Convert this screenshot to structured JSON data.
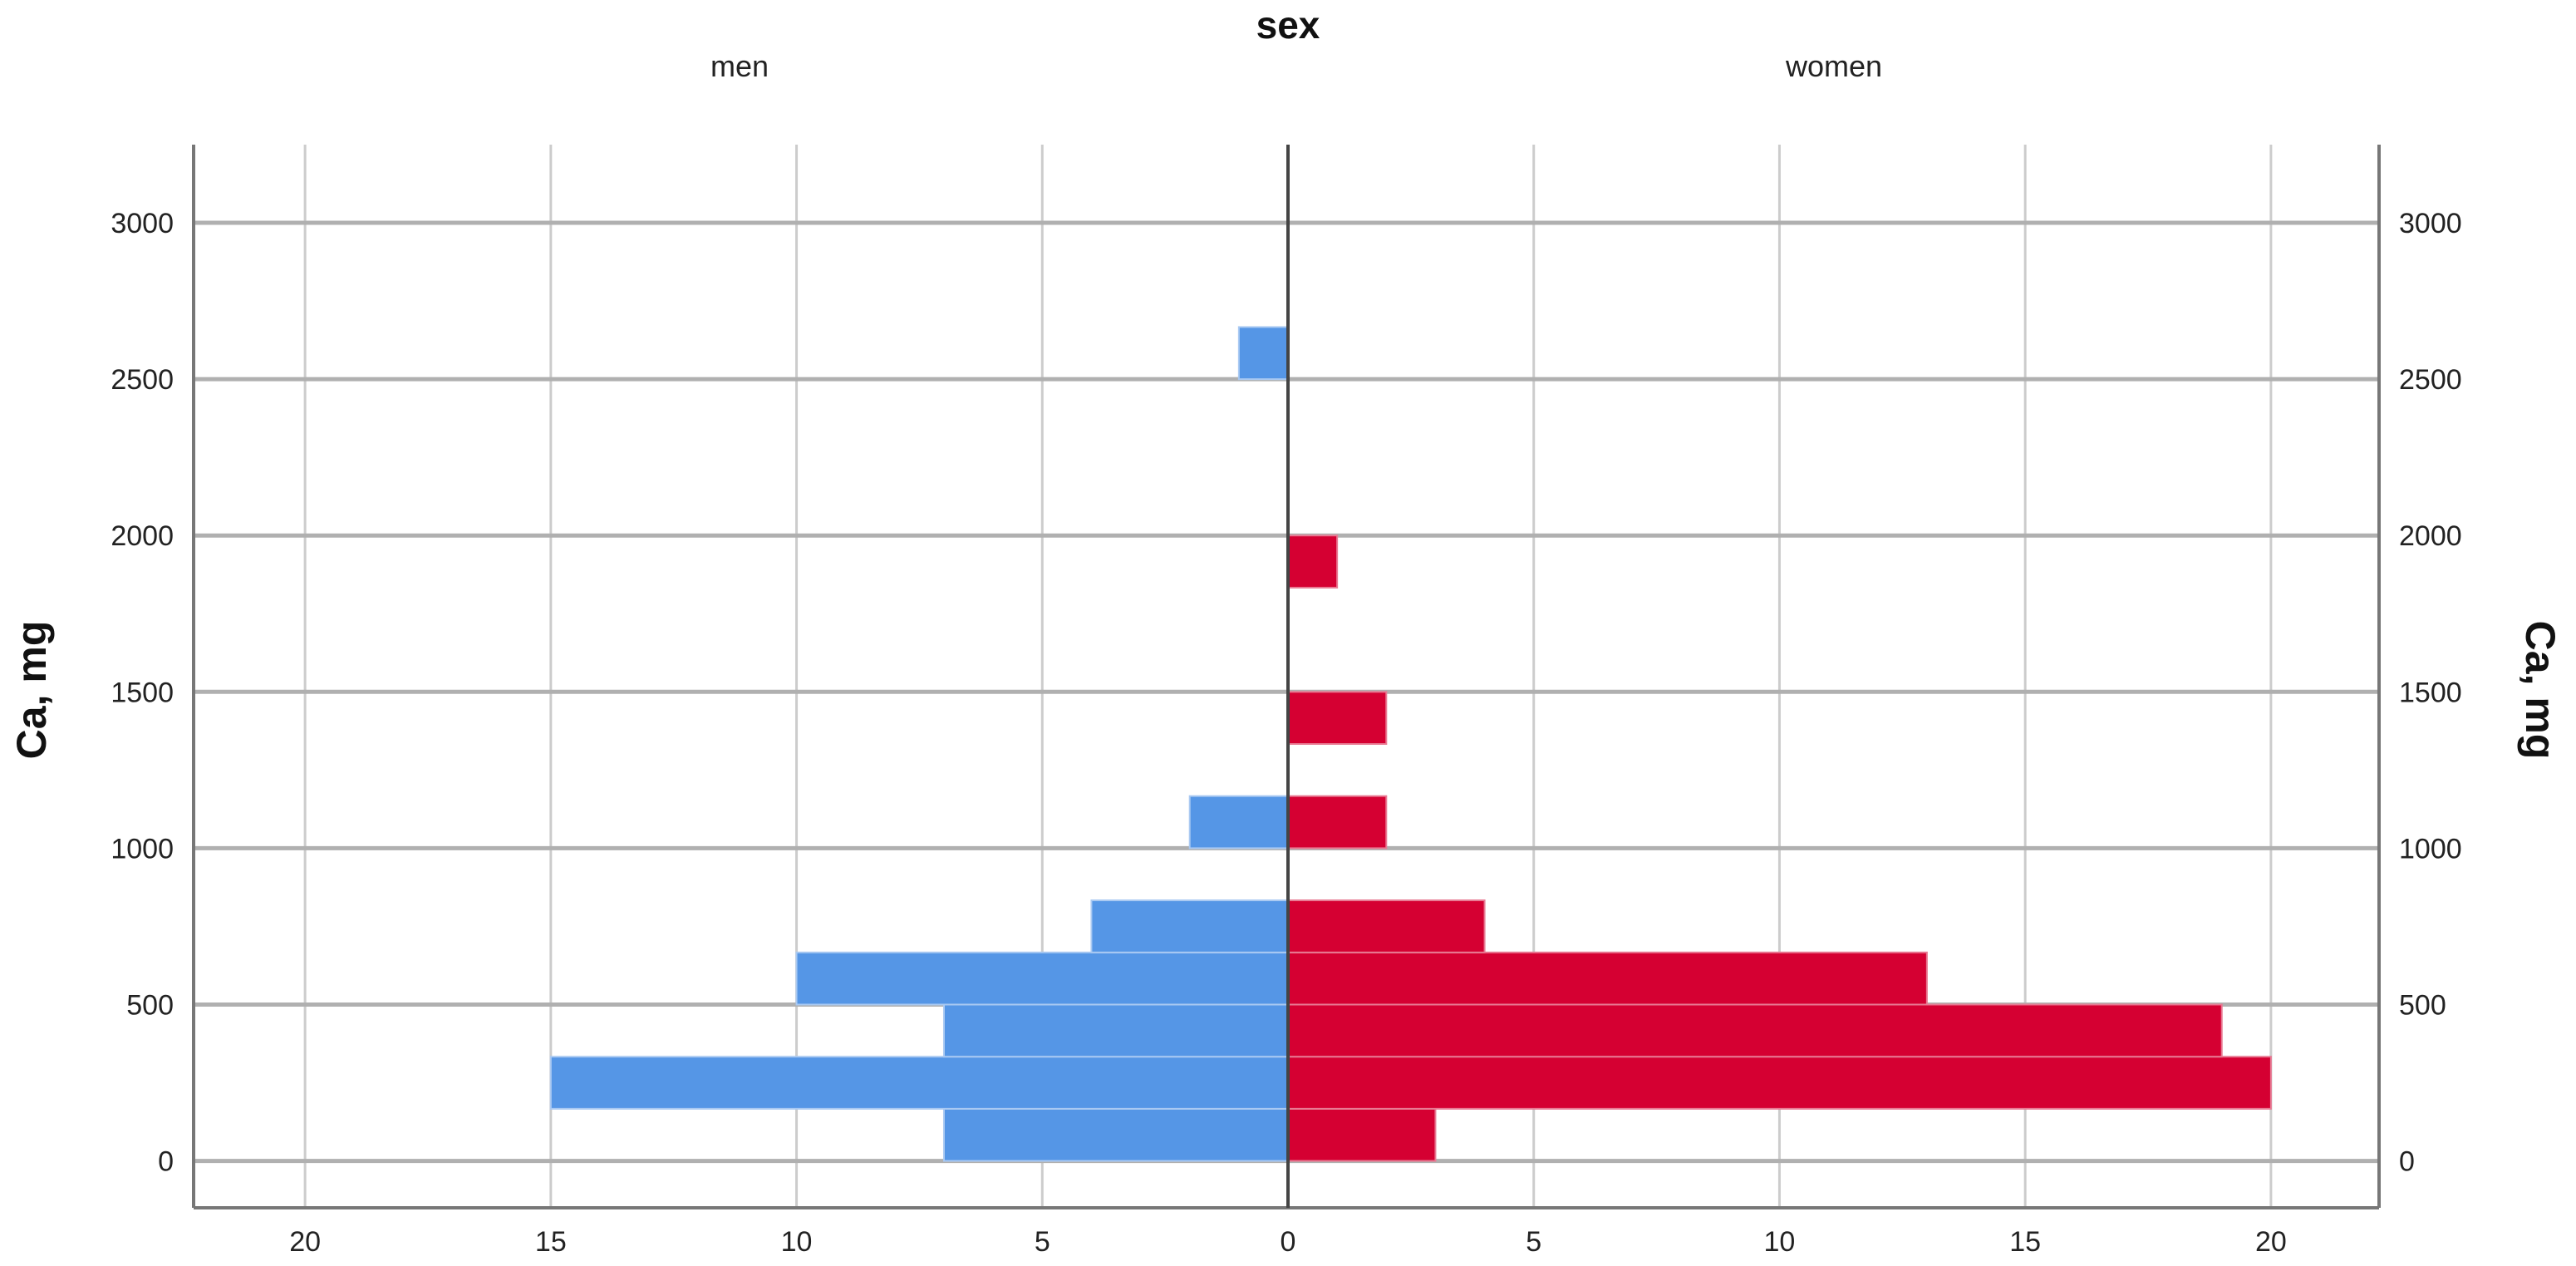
{
  "chart_data": {
    "type": "bar",
    "subtype": "population-pyramid",
    "title": "sex",
    "panels": [
      "men",
      "women"
    ],
    "ylabel": "Ca, mg",
    "xlabel": "",
    "ylim": [
      -150,
      3250
    ],
    "yticks": [
      0,
      500,
      1000,
      1500,
      2000,
      2500,
      3000
    ],
    "xlim": [
      -22.2,
      22.2
    ],
    "xticks_left": [
      20,
      15,
      10,
      5,
      0
    ],
    "xticks_right": [
      5,
      10,
      15,
      20
    ],
    "grid": true,
    "colors": {
      "men": "#5596E6",
      "women": "#D50032"
    },
    "bins": [
      {
        "from": 0,
        "to": 166.7,
        "men": 7,
        "women": 3
      },
      {
        "from": 166.7,
        "to": 333.3,
        "men": 15,
        "women": 20
      },
      {
        "from": 333.3,
        "to": 500,
        "men": 7,
        "women": 19
      },
      {
        "from": 500,
        "to": 666.7,
        "men": 10,
        "women": 13
      },
      {
        "from": 666.7,
        "to": 833.3,
        "men": 4,
        "women": 4
      },
      {
        "from": 1000,
        "to": 1166.7,
        "men": 2,
        "women": 2
      },
      {
        "from": 1333.3,
        "to": 1500,
        "men": 0,
        "women": 2
      },
      {
        "from": 1833.3,
        "to": 2000,
        "men": 0,
        "women": 1
      },
      {
        "from": 2500,
        "to": 2666.7,
        "men": 1,
        "women": 0
      }
    ]
  }
}
